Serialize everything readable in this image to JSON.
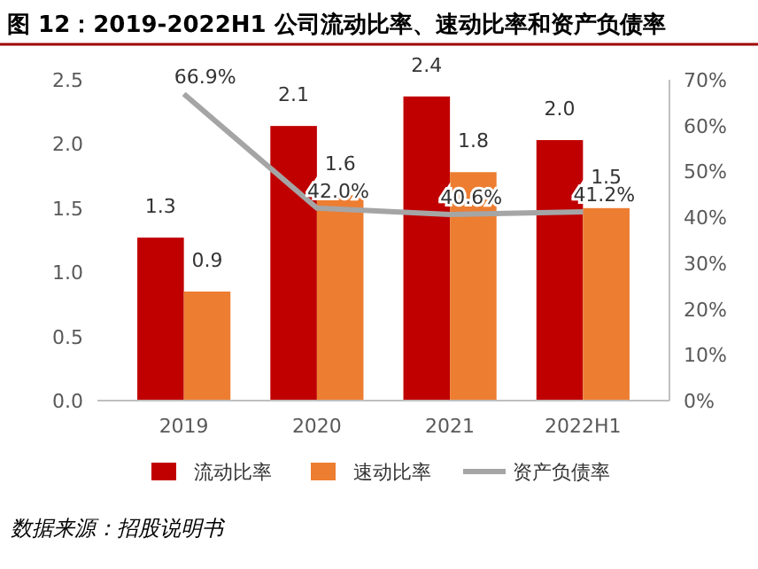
{
  "chart_data": {
    "type": "bar",
    "title": "图 12：2019-2022H1 公司流动比率、速动比率和资产负债率",
    "categories": [
      "2019",
      "2020",
      "2021",
      "2022H1"
    ],
    "series": [
      {
        "name": "流动比率",
        "color": "#c00000",
        "values": [
          1.27,
          2.14,
          2.37,
          2.03
        ],
        "value_labels": [
          "1.3",
          "2.1",
          "2.4",
          "2.0"
        ]
      },
      {
        "name": "速动比率",
        "color": "#ed7d31",
        "values": [
          0.85,
          1.6,
          1.78,
          1.5
        ],
        "value_labels": [
          "0.9",
          "1.6",
          "1.8",
          "1.5"
        ]
      },
      {
        "name": "资产负债率",
        "type": "line",
        "axis": "y2",
        "color": "#a5a5a5",
        "values": [
          66.9,
          42.0,
          40.6,
          41.2
        ],
        "value_labels": [
          "66.9%",
          "42.0%",
          "40.6%",
          "41.2%"
        ]
      }
    ],
    "ylim": [
      0,
      2.5
    ],
    "yticks": [
      {
        "value": 0,
        "label": "0.0"
      },
      0.5,
      {
        "value": 1,
        "label": "1.0"
      },
      1.5,
      {
        "value": 2,
        "label": "2.0"
      },
      2.5
    ],
    "y2lim": [
      0,
      70
    ],
    "y2ticks": [
      {
        "value": 0,
        "label": "0%"
      },
      {
        "value": 10,
        "label": "10%"
      },
      {
        "value": 20,
        "label": "20%"
      },
      {
        "value": 30,
        "label": "30%"
      },
      {
        "value": 40,
        "label": "40%"
      },
      {
        "value": 50,
        "label": "50%"
      },
      {
        "value": 60,
        "label": "60%"
      },
      {
        "value": 70,
        "label": "70%"
      }
    ],
    "legend": "bottom",
    "marker": "none",
    "annotations": [
      "数据来源：招股说明书"
    ]
  }
}
